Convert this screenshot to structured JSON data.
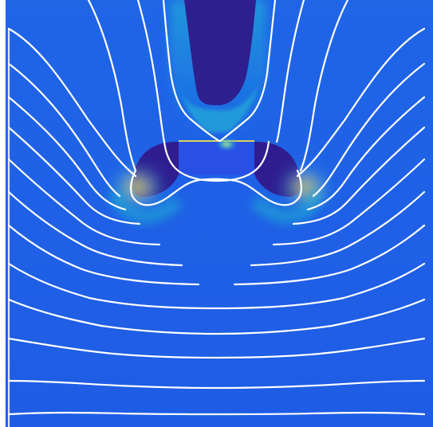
{
  "figure": {
    "colors": {
      "background_field": "#1e60e6",
      "low_field": "#2f1d8f",
      "mid_field": "#21b6cf",
      "high_field": "#f3df2b",
      "peak_field": "#ef8f1d",
      "streamline": "#ffffff",
      "frame": "#ffffff"
    },
    "legend": [],
    "annotations": []
  }
}
